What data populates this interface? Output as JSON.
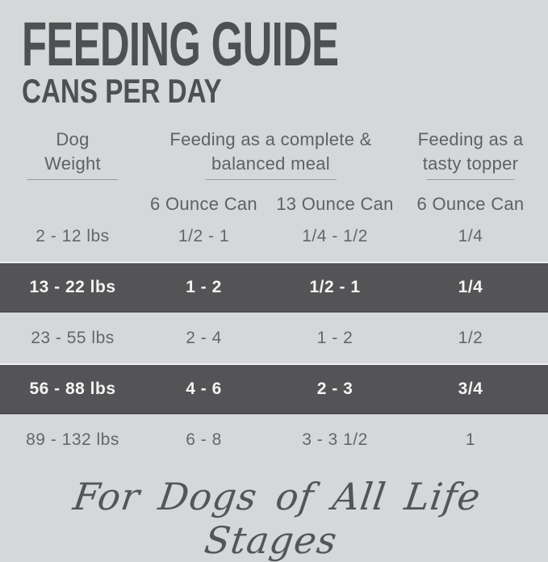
{
  "header": {
    "title": "FEEDING GUIDE",
    "subtitle": "CANS PER DAY"
  },
  "table": {
    "weight_header": {
      "line1": "Dog",
      "line2": "Weight"
    },
    "complete_meal_header": {
      "line1": "Feeding as a complete &",
      "line2": "balanced meal"
    },
    "topper_header": {
      "line1": "Feeding as a",
      "line2": "tasty topper"
    },
    "sub_headers": [
      "6 Ounce Can",
      "13 Ounce Can",
      "6 Ounce Can"
    ],
    "rows": [
      {
        "weight": "2 - 12 lbs",
        "complete_6oz": "1/2 - 1",
        "complete_13oz": "1/4 - 1/2",
        "topper_6oz": "1/4",
        "highlighted": false
      },
      {
        "weight": "13 - 22 lbs",
        "complete_6oz": "1 - 2",
        "complete_13oz": "1/2 - 1",
        "topper_6oz": "1/4",
        "highlighted": true
      },
      {
        "weight": "23 - 55 lbs",
        "complete_6oz": "2 - 4",
        "complete_13oz": "1 - 2",
        "topper_6oz": "1/2",
        "highlighted": false
      },
      {
        "weight": "56 - 88 lbs",
        "complete_6oz": "4 - 6",
        "complete_13oz": "2 - 3",
        "topper_6oz": "3/4",
        "highlighted": true
      },
      {
        "weight": "89 - 132 lbs",
        "complete_6oz": "6 - 8",
        "complete_13oz": "3 - 3 1/2",
        "topper_6oz": "1",
        "highlighted": false
      }
    ]
  },
  "footer": {
    "tagline": "For Dogs of All Life Stages"
  },
  "colors": {
    "background": "#d6d7d8",
    "highlight_band": "#545456",
    "title_text": "#4e5052",
    "body_text": "#64666a",
    "highlight_text": "#f4f4f5",
    "underline": "#96989b"
  }
}
